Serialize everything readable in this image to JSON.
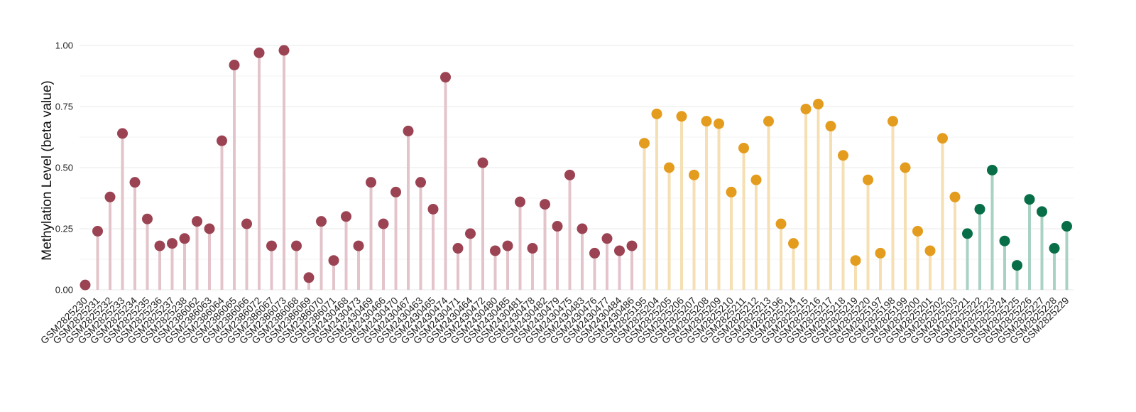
{
  "chart_data": {
    "type": "lollipop",
    "title": "",
    "xlabel": "",
    "ylabel": "Methylation Level (beta value)",
    "ylim": [
      0,
      1
    ],
    "yticks": [
      "0.00",
      "0.25",
      "0.50",
      "0.75",
      "1.00"
    ],
    "ytick_values": [
      0,
      0.25,
      0.5,
      0.75,
      1.0
    ],
    "grid": true,
    "legend": "none",
    "group_colors": [
      {
        "point": "#9b4352",
        "stem": "#e3c4cb"
      },
      {
        "point": "#e49c1e",
        "stem": "#f5dfb3"
      },
      {
        "point": "#076e47",
        "stem": "#a9d2c3"
      }
    ],
    "categories": [
      "GSM2825230",
      "GSM2825231",
      "GSM2825232",
      "GSM2825233",
      "GSM2825234",
      "GSM2825235",
      "GSM2825236",
      "GSM2825237",
      "GSM2825238",
      "GSM2386062",
      "GSM2386063",
      "GSM2386064",
      "GSM2386065",
      "GSM2386066",
      "GSM2386072",
      "GSM2386067",
      "GSM2386073",
      "GSM2386068",
      "GSM2386069",
      "GSM2386070",
      "GSM2386071",
      "GSM2430468",
      "GSM2430473",
      "GSM2430469",
      "GSM2430466",
      "GSM2430470",
      "GSM2430467",
      "GSM2430463",
      "GSM2430465",
      "GSM2430474",
      "GSM2430471",
      "GSM2430464",
      "GSM2430472",
      "GSM2430480",
      "GSM2430485",
      "GSM2430481",
      "GSM2430478",
      "GSM2430482",
      "GSM2430479",
      "GSM2430475",
      "GSM2430483",
      "GSM2430476",
      "GSM2430477",
      "GSM2430484",
      "GSM2430486",
      "GSM2825195",
      "GSM2825204",
      "GSM2825205",
      "GSM2825206",
      "GSM2825207",
      "GSM2825208",
      "GSM2825209",
      "GSM2825210",
      "GSM2825211",
      "GSM2825212",
      "GSM2825213",
      "GSM2825196",
      "GSM2825214",
      "GSM2825215",
      "GSM2825216",
      "GSM2825217",
      "GSM2825218",
      "GSM2825219",
      "GSM2825220",
      "GSM2825197",
      "GSM2825198",
      "GSM2825199",
      "GSM2825200",
      "GSM2825201",
      "GSM2825202",
      "GSM2825203",
      "GSM2825221",
      "GSM2825222",
      "GSM2825223",
      "GSM2825224",
      "GSM2825225",
      "GSM2825226",
      "GSM2825227",
      "GSM2825228",
      "GSM2825229"
    ],
    "values": [
      0.02,
      0.24,
      0.38,
      0.64,
      0.44,
      0.29,
      0.18,
      0.19,
      0.21,
      0.28,
      0.25,
      0.61,
      0.92,
      0.27,
      0.97,
      0.18,
      0.98,
      0.18,
      0.05,
      0.28,
      0.12,
      0.3,
      0.18,
      0.44,
      0.27,
      0.4,
      0.65,
      0.44,
      0.33,
      0.87,
      0.17,
      0.23,
      0.52,
      0.16,
      0.18,
      0.36,
      0.17,
      0.35,
      0.26,
      0.47,
      0.25,
      0.15,
      0.21,
      0.16,
      0.18,
      0.6,
      0.72,
      0.5,
      0.71,
      0.47,
      0.69,
      0.68,
      0.4,
      0.58,
      0.45,
      0.69,
      0.27,
      0.19,
      0.74,
      0.76,
      0.67,
      0.55,
      0.12,
      0.45,
      0.15,
      0.69,
      0.5,
      0.24,
      0.16,
      0.62,
      0.38,
      0.23,
      0.33,
      0.49,
      0.2,
      0.1,
      0.37,
      0.32,
      0.17,
      0.26
    ],
    "groups": [
      0,
      0,
      0,
      0,
      0,
      0,
      0,
      0,
      0,
      0,
      0,
      0,
      0,
      0,
      0,
      0,
      0,
      0,
      0,
      0,
      0,
      0,
      0,
      0,
      0,
      0,
      0,
      0,
      0,
      0,
      0,
      0,
      0,
      0,
      0,
      0,
      0,
      0,
      0,
      0,
      0,
      0,
      0,
      0,
      0,
      1,
      1,
      1,
      1,
      1,
      1,
      1,
      1,
      1,
      1,
      1,
      1,
      1,
      1,
      1,
      1,
      1,
      1,
      1,
      1,
      1,
      1,
      1,
      1,
      1,
      1,
      2,
      2,
      2,
      2,
      2,
      2,
      2,
      2,
      2
    ]
  }
}
